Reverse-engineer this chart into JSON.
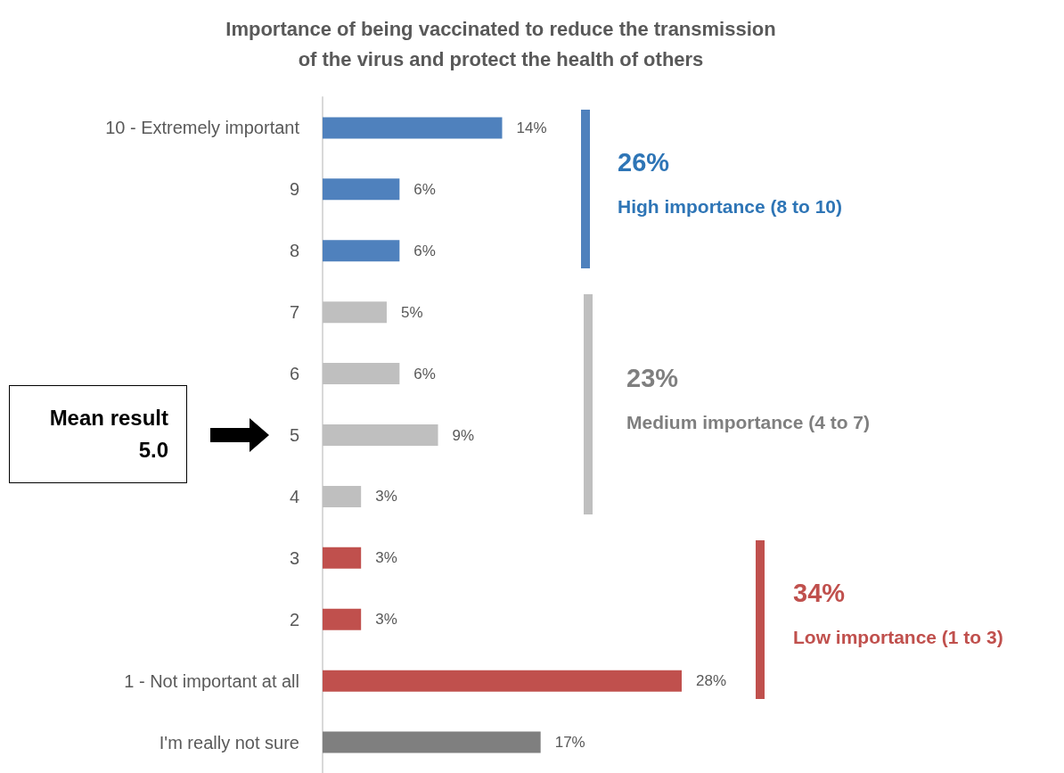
{
  "chart_data": {
    "type": "bar",
    "orientation": "horizontal",
    "title": "Importance of being vaccinated to reduce the transmission\nof the virus and protect the health of others",
    "categories": [
      "10 - Extremely important",
      "9",
      "8",
      "7",
      "6",
      "5",
      "4",
      "3",
      "2",
      "1 - Not important at all",
      "I'm really not sure"
    ],
    "values": [
      14,
      6,
      6,
      5,
      6,
      9,
      3,
      3,
      3,
      28,
      17
    ],
    "colors": [
      "#4f81bd",
      "#4f81bd",
      "#4f81bd",
      "#bfbfbf",
      "#bfbfbf",
      "#bfbfbf",
      "#bfbfbf",
      "#c0504d",
      "#c0504d",
      "#c0504d",
      "#7f7f7f"
    ],
    "value_labels": [
      "14%",
      "6%",
      "6%",
      "5%",
      "6%",
      "9%",
      "3%",
      "3%",
      "3%",
      "28%",
      "17%"
    ],
    "annotations": [
      "26%",
      "High importance (8 to 10)",
      "23%",
      "Medium importance (4 to 7)",
      "34%",
      "Low importance (1 to 3)",
      "Mean result",
      "5.0"
    ]
  }
}
